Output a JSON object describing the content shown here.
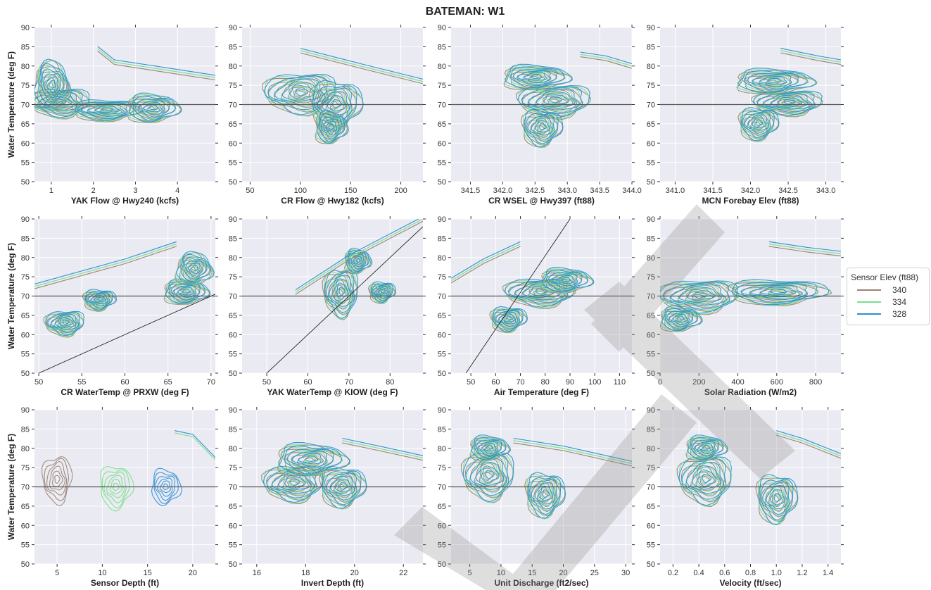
{
  "chart_data": {
    "type": "contour",
    "title": "BATEMAN: W1",
    "ylabel": "Water Temperature (deg F)",
    "ylim": [
      50,
      90
    ],
    "yticks": [
      50,
      55,
      60,
      65,
      70,
      75,
      80,
      85,
      90
    ],
    "reference_line_y": 70,
    "grid": true,
    "legend": {
      "title": "Sensor Elev (ft88)",
      "placement": "right",
      "entries": [
        {
          "name": "340",
          "color": "#9a8372"
        },
        {
          "name": "334",
          "color": "#77e08a"
        },
        {
          "name": "328",
          "color": "#2a8fd6"
        }
      ]
    },
    "panels": [
      {
        "xlabel": "YAK Flow @ Hwy240 (kcfs)",
        "xlim": [
          0.6,
          4.9
        ],
        "xticks": [
          "1",
          "2",
          "3",
          "4"
        ],
        "xtick_values": [
          1,
          2,
          3,
          4
        ],
        "blobs": [
          [
            1.2,
            70.5,
            0.7,
            3.5
          ],
          [
            2.3,
            68.5,
            0.8,
            2.5
          ],
          [
            3.4,
            69,
            0.6,
            3.5
          ],
          [
            1.0,
            75,
            0.4,
            6
          ]
        ],
        "top_line": [
          [
            2.1,
            84.5
          ],
          [
            2.5,
            81
          ],
          [
            4.9,
            77
          ]
        ]
      },
      {
        "xlabel": "CR Flow @ Hwy182 (kcfs)",
        "xlim": [
          42,
          222
        ],
        "xticks": [
          "50",
          "100",
          "150",
          "200"
        ],
        "xtick_values": [
          50,
          100,
          150,
          200
        ],
        "blobs": [
          [
            100,
            73,
            35,
            5
          ],
          [
            135,
            70,
            25,
            6
          ],
          [
            130,
            64,
            15,
            4
          ]
        ],
        "top_line": [
          [
            100,
            84
          ],
          [
            160,
            80
          ],
          [
            222,
            76
          ]
        ]
      },
      {
        "xlabel": "CR WSEL @ Hwy397 (ft88)",
        "xlim": [
          341.2,
          344.0
        ],
        "xticks": [
          "341.5",
          "342.0",
          "342.5",
          "343.0",
          "343.5",
          "344.0"
        ],
        "xtick_values": [
          341.5,
          342.0,
          342.5,
          343.0,
          343.5,
          344.0
        ],
        "blobs": [
          [
            342.8,
            71,
            0.55,
            4
          ],
          [
            342.6,
            64,
            0.3,
            4.5
          ],
          [
            342.5,
            77,
            0.5,
            3
          ]
        ],
        "top_line": [
          [
            343.2,
            83
          ],
          [
            343.6,
            82
          ],
          [
            344.0,
            80
          ]
        ]
      },
      {
        "xlabel": "MCN Forebay Elev (ft88)",
        "xlim": [
          340.8,
          343.2
        ],
        "xticks": [
          "341.0",
          "341.5",
          "342.0",
          "342.5",
          "343.0"
        ],
        "xtick_values": [
          341.0,
          341.5,
          342.0,
          342.5,
          343.0
        ],
        "blobs": [
          [
            342.5,
            70.5,
            0.45,
            3
          ],
          [
            342.1,
            65,
            0.25,
            4
          ],
          [
            342.3,
            76,
            0.5,
            3
          ]
        ],
        "top_line": [
          [
            342.4,
            84
          ],
          [
            342.9,
            82
          ],
          [
            343.2,
            81
          ]
        ]
      },
      {
        "xlabel": "CR WaterTemp @ PRXW (deg F)",
        "xlim": [
          49.5,
          70.5
        ],
        "xticks": [
          "50",
          "55",
          "60",
          "65",
          "70"
        ],
        "xtick_values": [
          50,
          55,
          60,
          65,
          70
        ],
        "blobs": [
          [
            53,
            63,
            2.2,
            3
          ],
          [
            57,
            69,
            1.8,
            2.5
          ],
          [
            67,
            71,
            2.5,
            3
          ],
          [
            68,
            77,
            2,
            4
          ]
        ],
        "top_line": [
          [
            49.5,
            72.5
          ],
          [
            60,
            79
          ],
          [
            66,
            83.5
          ]
        ],
        "diagonal": [
          [
            50,
            50
          ],
          [
            70.5,
            70.5
          ]
        ]
      },
      {
        "xlabel": "YAK WaterTemp @ KIOW (deg F)",
        "xlim": [
          44,
          88
        ],
        "xticks": [
          "50",
          "60",
          "70",
          "80"
        ],
        "xtick_values": [
          50,
          60,
          70,
          80
        ],
        "blobs": [
          [
            68,
            71,
            4,
            6
          ],
          [
            78,
            71,
            3,
            2.5
          ],
          [
            72,
            79,
            3,
            3
          ]
        ],
        "top_line": [
          [
            57,
            71
          ],
          [
            70,
            80
          ],
          [
            88,
            90
          ]
        ],
        "diagonal": [
          [
            50,
            50
          ],
          [
            88,
            88
          ]
        ]
      },
      {
        "xlabel": "Air Temperature (deg F)",
        "xlim": [
          42,
          115
        ],
        "xticks": [
          "50",
          "60",
          "70",
          "80",
          "90",
          "100",
          "110"
        ],
        "xtick_values": [
          50,
          60,
          70,
          80,
          90,
          100,
          110
        ],
        "blobs": [
          [
            78,
            71,
            14,
            3.5
          ],
          [
            65,
            64,
            7,
            3
          ],
          [
            88,
            74,
            10,
            3
          ]
        ],
        "top_line": [
          [
            42,
            74
          ],
          [
            55,
            79
          ],
          [
            70,
            83.5
          ]
        ],
        "diagonal": [
          [
            48,
            50
          ],
          [
            90,
            90
          ]
        ]
      },
      {
        "xlabel": "Solar Radiation (W/m2)",
        "xlim": [
          0,
          930
        ],
        "xticks": [
          "0",
          "200",
          "400",
          "600",
          "800"
        ],
        "xtick_values": [
          0,
          200,
          400,
          600,
          800
        ],
        "blobs": [
          [
            200,
            70,
            200,
            4
          ],
          [
            600,
            71,
            250,
            3
          ],
          [
            100,
            64,
            100,
            3
          ]
        ],
        "top_line": [
          [
            560,
            83.5
          ],
          [
            760,
            82
          ],
          [
            930,
            81
          ]
        ]
      },
      {
        "xlabel": "Sensor Depth (ft)",
        "xlim": [
          2.5,
          22.5
        ],
        "xticks": [
          "5",
          "10",
          "15",
          "20"
        ],
        "xtick_values": [
          5,
          10,
          15,
          20
        ],
        "blobs": [
          [
            5,
            72,
            1.6,
            6
          ],
          [
            11.5,
            70,
            1.8,
            5.5
          ],
          [
            17,
            70,
            1.6,
            4.5
          ]
        ],
        "top_line": [
          [
            18,
            84
          ],
          [
            20,
            83
          ],
          [
            22.5,
            77
          ]
        ]
      },
      {
        "xlabel": "Invert Depth (ft)",
        "xlim": [
          15.4,
          22.8
        ],
        "xticks": [
          "16",
          "18",
          "20",
          "22"
        ],
        "xtick_values": [
          16,
          18,
          20,
          22
        ],
        "blobs": [
          [
            17.5,
            71,
            1.2,
            4.5
          ],
          [
            19.5,
            70,
            0.9,
            5
          ],
          [
            18.2,
            77,
            1.4,
            4
          ]
        ],
        "top_line": [
          [
            19.5,
            82
          ],
          [
            21,
            80
          ],
          [
            22.8,
            77.5
          ]
        ]
      },
      {
        "xlabel": "Unit Discharge (ft2/sec)",
        "xlim": [
          2,
          31
        ],
        "xticks": [
          "5",
          "10",
          "15",
          "20",
          "25",
          "30"
        ],
        "xtick_values": [
          5,
          10,
          15,
          20,
          25,
          30
        ],
        "blobs": [
          [
            8,
            73,
            4,
            6
          ],
          [
            17,
            68,
            3,
            5.5
          ],
          [
            8,
            80,
            3,
            3
          ]
        ],
        "top_line": [
          [
            12,
            82
          ],
          [
            20,
            80
          ],
          [
            31,
            76
          ]
        ]
      },
      {
        "xlabel": "Velocity (ft/sec)",
        "xlim": [
          0.1,
          1.5
        ],
        "xticks": [
          "0.2",
          "0.4",
          "0.6",
          "0.8",
          "1.0",
          "1.2",
          "1.4"
        ],
        "xtick_values": [
          0.2,
          0.4,
          0.6,
          0.8,
          1.0,
          1.2,
          1.4
        ],
        "blobs": [
          [
            0.45,
            72,
            0.2,
            6
          ],
          [
            1.0,
            67,
            0.15,
            6
          ],
          [
            0.45,
            80,
            0.15,
            3
          ]
        ],
        "top_line": [
          [
            1.0,
            84
          ],
          [
            1.2,
            82
          ],
          [
            1.5,
            78
          ]
        ]
      }
    ]
  }
}
